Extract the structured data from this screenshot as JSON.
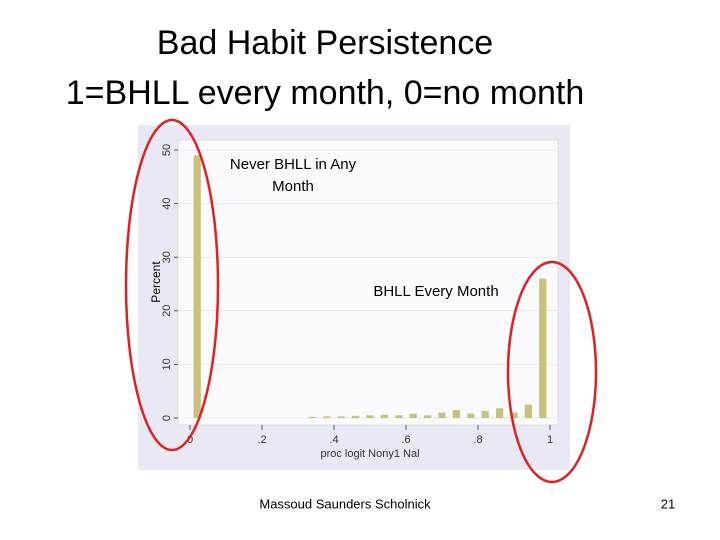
{
  "slide": {
    "title": [
      "Bad Habit Persistence",
      "1=BHLL every month, 0=no month"
    ],
    "footer": "Massoud Saunders Scholnick",
    "page_number": "21"
  },
  "chart_data": {
    "type": "histogram",
    "bins": [
      0,
      0.04,
      0.08,
      0.12,
      0.16,
      0.2,
      0.24,
      0.28,
      0.32,
      0.36,
      0.4,
      0.44,
      0.48,
      0.52,
      0.56,
      0.6,
      0.64,
      0.68,
      0.72,
      0.76,
      0.8,
      0.84,
      0.88,
      0.92,
      0.96,
      1
    ],
    "values": [
      49,
      0,
      0,
      0,
      0,
      0,
      0,
      0,
      0.2,
      0.3,
      0.3,
      0.4,
      0.5,
      0.6,
      0.5,
      0.8,
      0.5,
      1.0,
      1.5,
      0.8,
      1.3,
      1.8,
      1.0,
      2.5,
      26
    ],
    "color": "#c9c17a",
    "ylabel": "Percent",
    "xlabel": "proc logit Nony1 Nal",
    "xlim": [
      0,
      1
    ],
    "xticks": [
      0,
      {
        "value": 0.2,
        "label": ".2"
      },
      {
        "value": 0.4,
        "label": ".4"
      },
      {
        "value": 0.6,
        "label": ".6"
      },
      {
        "value": 0.8,
        "label": ".8"
      },
      1
    ],
    "ylim": [
      0,
      50
    ],
    "yticks": [
      0,
      10,
      20,
      30,
      40,
      50
    ],
    "grid": true,
    "annotations": [
      [
        "Never BHLL in Any",
        "Month"
      ],
      [
        "BHLL Every Month"
      ]
    ]
  }
}
